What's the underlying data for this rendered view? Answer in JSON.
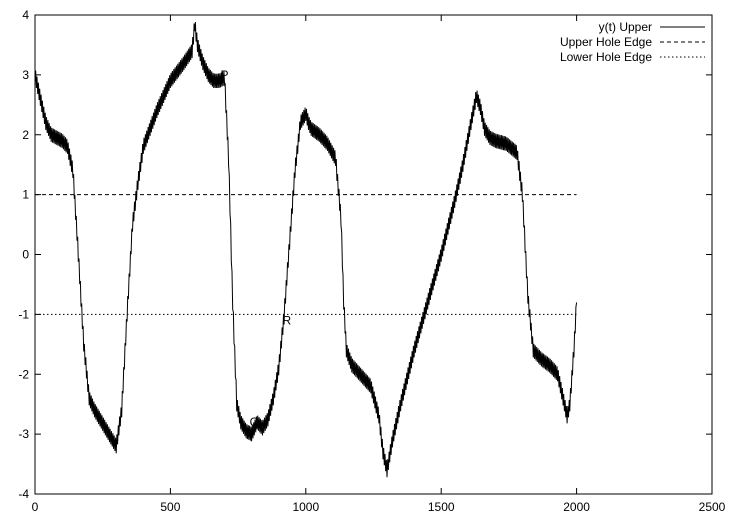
{
  "chart_data": {
    "type": "line",
    "title": "",
    "xlabel": "",
    "ylabel": "",
    "xlim": [
      0,
      2500
    ],
    "ylim": [
      -4,
      4
    ],
    "x_ticks": [
      0,
      500,
      1000,
      1500,
      2000,
      2500
    ],
    "y_ticks": [
      -4,
      -3,
      -2,
      -1,
      0,
      1,
      2,
      3,
      4
    ],
    "grid": false,
    "legend_position": "top-right",
    "series": [
      {
        "name": "y(t) Upper",
        "style": "solid",
        "oscillation_amplitude": 0.12,
        "x": [
          0,
          20,
          40,
          60,
          80,
          100,
          120,
          140,
          160,
          180,
          200,
          220,
          240,
          260,
          280,
          300,
          320,
          340,
          360,
          380,
          400,
          450,
          500,
          550,
          580,
          590,
          600,
          620,
          640,
          660,
          680,
          700,
          715,
          730,
          745,
          760,
          780,
          800,
          820,
          840,
          860,
          880,
          900,
          920,
          940,
          960,
          980,
          1000,
          1010,
          1020,
          1050,
          1080,
          1110,
          1130,
          1140,
          1150,
          1170,
          1200,
          1240,
          1270,
          1285,
          1300,
          1320,
          1350,
          1400,
          1450,
          1500,
          1550,
          1580,
          1610,
          1630,
          1645,
          1660,
          1680,
          1700,
          1740,
          1780,
          1800,
          1820,
          1840,
          1870,
          1900,
          1930,
          1950,
          1965,
          1975,
          1990,
          2000
        ],
        "y": [
          3.0,
          2.6,
          2.2,
          2.0,
          1.95,
          1.9,
          1.8,
          1.4,
          0.0,
          -1.5,
          -2.4,
          -2.6,
          -2.75,
          -2.9,
          -3.05,
          -3.2,
          -2.6,
          -1.0,
          0.5,
          1.2,
          1.8,
          2.4,
          2.9,
          3.2,
          3.4,
          3.85,
          3.5,
          3.2,
          3.0,
          2.9,
          2.9,
          2.95,
          1.6,
          -0.8,
          -2.5,
          -2.8,
          -2.95,
          -3.0,
          -2.8,
          -2.9,
          -2.75,
          -2.4,
          -1.9,
          -1.0,
          0.2,
          1.4,
          2.2,
          2.35,
          2.2,
          2.1,
          2.0,
          1.85,
          1.6,
          0.6,
          -0.8,
          -1.6,
          -1.85,
          -2.0,
          -2.2,
          -2.7,
          -3.3,
          -3.6,
          -3.1,
          -2.5,
          -1.6,
          -0.8,
          0.0,
          0.9,
          1.5,
          2.2,
          2.65,
          2.45,
          2.1,
          1.95,
          1.9,
          1.85,
          1.7,
          1.0,
          -0.7,
          -1.6,
          -1.75,
          -1.85,
          -2.0,
          -2.4,
          -2.7,
          -2.5,
          -1.6,
          -0.8
        ]
      },
      {
        "name": "Upper Hole Edge",
        "style": "dashed",
        "x": [
          0,
          2000
        ],
        "y": [
          1,
          1
        ]
      },
      {
        "name": "Lower Hole Edge",
        "style": "dotted",
        "x": [
          0,
          2000
        ],
        "y": [
          -1,
          -1
        ]
      }
    ],
    "annotations": [
      {
        "label": "P",
        "x": 700,
        "y": 3.0
      },
      {
        "label": "Q",
        "x": 810,
        "y": -2.8
      },
      {
        "label": "R",
        "x": 930,
        "y": -1.1
      }
    ]
  }
}
